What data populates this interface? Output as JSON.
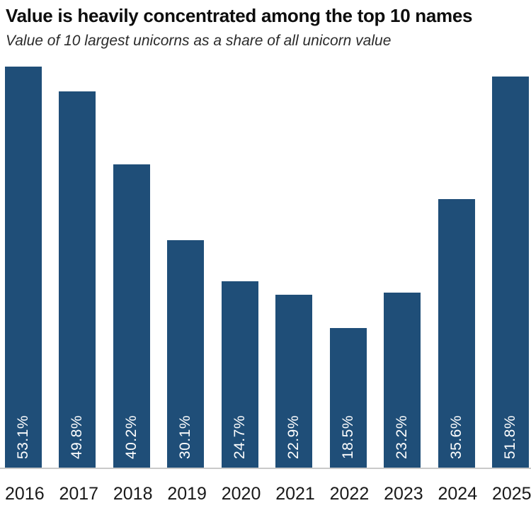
{
  "header": {
    "title": "Value is heavily concentrated among the top 10 names",
    "subtitle": "Value of 10 largest unicorns as a share of all unicorn value"
  },
  "chart_data": {
    "type": "bar",
    "title": "Value is heavily concentrated among the top 10 names",
    "subtitle": "Value of 10 largest unicorns as a share of all unicorn value",
    "categories": [
      "2016",
      "2017",
      "2018",
      "2019",
      "2020",
      "2021",
      "2022",
      "2023",
      "2024",
      "2025"
    ],
    "values": [
      53.1,
      49.8,
      40.2,
      30.1,
      24.7,
      22.9,
      18.5,
      23.2,
      35.6,
      51.8
    ],
    "value_labels": [
      "53.1%",
      "49.8%",
      "40.2%",
      "30.1%",
      "24.7%",
      "22.9%",
      "18.5%",
      "23.2%",
      "35.6%",
      "51.8%"
    ],
    "xlabel": "",
    "ylabel": "",
    "ylim": [
      0,
      55
    ],
    "grid": false,
    "legend": false,
    "value_label_position": "inside-bottom-rotated",
    "colors": {
      "bar": "#1f4e78",
      "value_label": "#ffffff",
      "axis_line": "#c9c9c9",
      "title": "#0d0d0d",
      "subtitle": "#2b2b2b",
      "tick_label": "#1a1a1a"
    }
  }
}
